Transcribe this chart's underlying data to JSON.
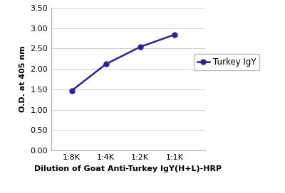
{
  "x_labels": [
    "1:8K",
    "1:4K",
    "1:2K",
    "1:1K"
  ],
  "x_values": [
    1,
    2,
    3,
    4
  ],
  "y_values": [
    1.47,
    2.12,
    2.54,
    2.84
  ],
  "line_color": "#35218a",
  "marker_style": "o",
  "marker_size": 5,
  "marker_face_color": "#35218a",
  "line_width": 1.8,
  "xlabel": "Dilution of Goat Anti-Turkey IgY(H+L)-HRP",
  "ylabel": "O.D. at 405 nm",
  "ylim": [
    0.0,
    3.5
  ],
  "yticks": [
    0.0,
    0.5,
    1.0,
    1.5,
    2.0,
    2.5,
    3.0,
    3.5
  ],
  "xlim": [
    0.4,
    4.9
  ],
  "legend_label": "Turkey IgY",
  "background_color": "#ffffff",
  "grid_color": "#d0d0d0",
  "xlabel_fontsize": 8,
  "ylabel_fontsize": 8,
  "tick_fontsize": 8,
  "legend_fontsize": 8.5,
  "spine_color": "#aaaaaa"
}
